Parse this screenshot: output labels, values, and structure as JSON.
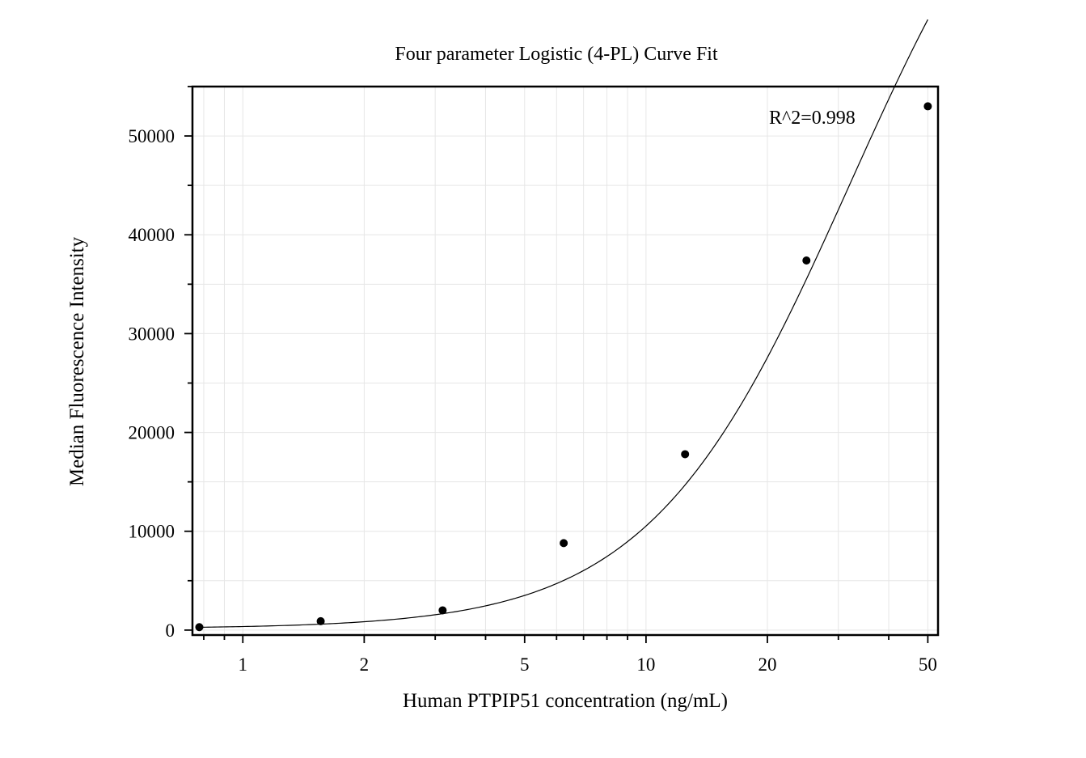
{
  "chart_data": {
    "type": "scatter",
    "title": "Four parameter Logistic (4-PL) Curve Fit",
    "xlabel": "Human PTPIP51 concentration (ng/mL)",
    "ylabel": "Median Fluorescence Intensity",
    "x_scale": "log",
    "xlim": [
      0.75,
      53
    ],
    "ylim": [
      -500,
      55000
    ],
    "x_ticks": [
      1,
      2,
      5,
      10,
      20,
      50
    ],
    "x_tick_labels": [
      "1",
      "2",
      "5",
      "10",
      "20",
      "50"
    ],
    "y_ticks": [
      0,
      10000,
      20000,
      30000,
      40000,
      50000
    ],
    "y_tick_labels": [
      "0",
      "10000",
      "20000",
      "30000",
      "40000",
      "50000"
    ],
    "grid": true,
    "annotation": "R^2=0.998",
    "points": {
      "x": [
        0.78,
        1.56,
        3.13,
        6.25,
        12.5,
        25,
        50
      ],
      "y": [
        300,
        900,
        2000,
        8800,
        17800,
        37400,
        53000
      ]
    },
    "fit_curve": {
      "model": "4-PL",
      "A": 150,
      "B": 1.75,
      "C": 32,
      "D": 90000
    },
    "colors": {
      "points": "#000000",
      "curve": "#000000",
      "grid": "#e6e6e6",
      "axes": "#000000"
    }
  }
}
